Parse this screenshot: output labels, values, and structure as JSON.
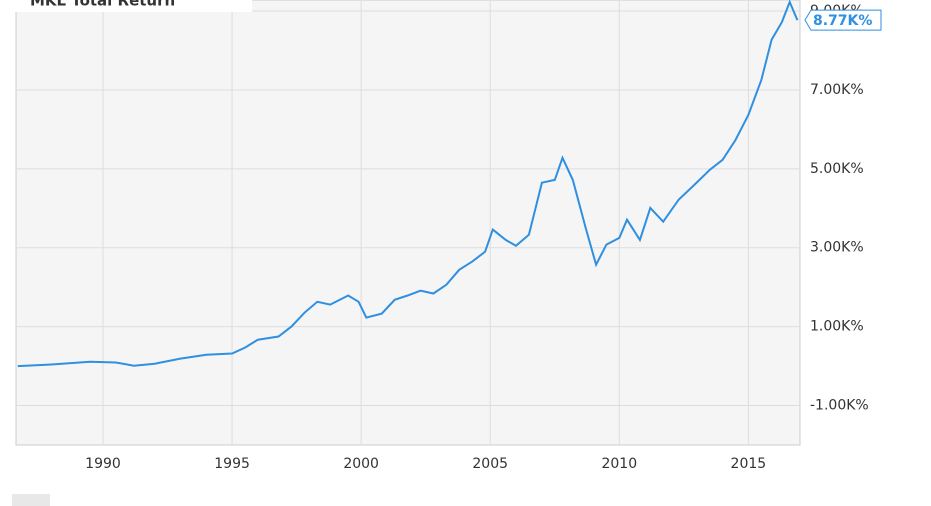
{
  "chart_data": {
    "type": "line",
    "title": "MKL Total Return",
    "x": [
      1986.7,
      1988,
      1989.5,
      1990.5,
      1991.2,
      1992,
      1993,
      1994,
      1995,
      1995.5,
      1996,
      1996.8,
      1997.3,
      1997.8,
      1998.3,
      1998.8,
      1999.5,
      1999.9,
      2000.2,
      2000.8,
      2001.3,
      2001.8,
      2002.3,
      2002.8,
      2003.3,
      2003.8,
      2004.3,
      2004.8,
      2005.1,
      2005.6,
      2006.0,
      2006.5,
      2007.0,
      2007.5,
      2007.8,
      2008.2,
      2008.7,
      2009.1,
      2009.5,
      2010.0,
      2010.3,
      2010.8,
      2011.2,
      2011.7,
      2012.3,
      2012.9,
      2013.5,
      2014.0,
      2014.5,
      2015.0,
      2015.5,
      2015.9,
      2016.3,
      2016.6,
      2016.9
    ],
    "series": [
      {
        "name": "MKL Total Return",
        "color": "#2f8fe0",
        "values": [
          0,
          40,
          110,
          90,
          10,
          60,
          190,
          290,
          320,
          470,
          670,
          750,
          1000,
          1350,
          1630,
          1560,
          1790,
          1630,
          1230,
          1330,
          1680,
          1790,
          1910,
          1840,
          2060,
          2440,
          2650,
          2900,
          3460,
          3200,
          3050,
          3330,
          4650,
          4720,
          5280,
          4720,
          3500,
          2570,
          3080,
          3250,
          3710,
          3200,
          4010,
          3660,
          4220,
          4590,
          4970,
          5230,
          5730,
          6370,
          7250,
          8270,
          8720,
          9230,
          8770
        ],
        "last_value_label": "8.77K%"
      }
    ],
    "xlim": [
      1986.63,
      2017.0
    ],
    "xticks": [
      1990,
      1995,
      2000,
      2005,
      2010,
      2015
    ],
    "ylim": [
      -2000,
      9280
    ],
    "yticks": [
      {
        "value": -1000,
        "label": "-1.00K%"
      },
      {
        "value": 1000,
        "label": "1.00K%"
      },
      {
        "value": 3000,
        "label": "3.00K%"
      },
      {
        "value": 5000,
        "label": "5.00K%"
      },
      {
        "value": 7000,
        "label": "7.00K%"
      },
      {
        "value": 9000,
        "label": "9.00K%"
      }
    ],
    "grid": true
  }
}
